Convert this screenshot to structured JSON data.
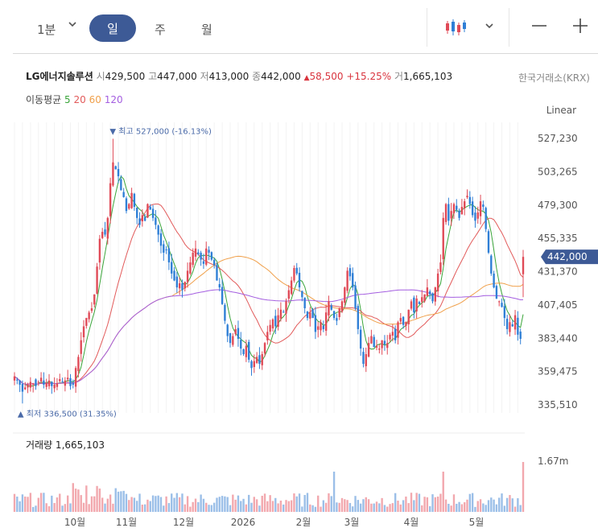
{
  "toolbar": {
    "interval_1min": "1분",
    "chevron": "⌄",
    "tab_day": "일",
    "tab_week": "주",
    "tab_month": "월",
    "chart_type_icon": "candlestick-icon",
    "zoom_out": "—",
    "zoom_in": "+"
  },
  "info": {
    "name": "LG에너지솔루션",
    "open_label": "시",
    "open": "429,500",
    "high_label": "고",
    "high": "447,000",
    "low_label": "저",
    "low": "413,000",
    "close_label": "종",
    "close": "442,000",
    "change_arrow": "▲",
    "change": "58,500",
    "change_pct": "+15.25%",
    "volume_label": "거",
    "volume": "1,665,103",
    "exchange": "한국거래소(KRX)"
  },
  "ma": {
    "label": "이동평균",
    "periods": [
      "5",
      "20",
      "60",
      "120"
    ],
    "colors": [
      "#3aa53a",
      "#e25a5a",
      "#f0a04b",
      "#a45ee0"
    ]
  },
  "scale_label": "Linear",
  "colors": {
    "up": "#e04a57",
    "down": "#2f7fd6",
    "accent": "#3d5a96",
    "vol_up": "#f2a8ae",
    "vol_down": "#9bbfe8"
  },
  "chart_data": {
    "type": "candlestick",
    "y_ticks": [
      "527,230",
      "503,265",
      "479,300",
      "455,335",
      "431,370",
      "407,405",
      "383,440",
      "359,475",
      "335,510"
    ],
    "y_tick_values": [
      527230,
      503265,
      479300,
      455335,
      431370,
      407405,
      383440,
      359475,
      335510
    ],
    "ylim": [
      325000,
      535000
    ],
    "x_labels": [
      "10월",
      "11월",
      "12월",
      "2026",
      "2월",
      "3월",
      "4월",
      "5월"
    ],
    "last_price_label": "442,000",
    "max_label": "▼ 최고 527,000 (-16.13%)",
    "min_label": "▲ 최저 336,500 (31.35%)",
    "volume_title": "거래량",
    "volume_value": "1,665,103",
    "volume_tick": "1.67m",
    "closes": [
      356000,
      353000,
      350000,
      345000,
      348000,
      350000,
      352000,
      351000,
      349000,
      352000,
      355000,
      350000,
      351000,
      353000,
      349000,
      350000,
      351000,
      354000,
      352000,
      353000,
      355000,
      349000,
      350000,
      362000,
      370000,
      382000,
      392000,
      398000,
      402000,
      405000,
      415000,
      435000,
      455000,
      460000,
      458000,
      470000,
      495000,
      510000,
      505000,
      500000,
      490000,
      485000,
      475000,
      480000,
      488000,
      478000,
      470000,
      465000,
      472000,
      468000,
      480000,
      476000,
      470000,
      465000,
      458000,
      450000,
      445000,
      447000,
      438000,
      430000,
      425000,
      420000,
      423000,
      418000,
      424000,
      432000,
      438000,
      445000,
      448000,
      444000,
      440000,
      437000,
      448000,
      445000,
      440000,
      436000,
      425000,
      420000,
      408000,
      396000,
      385000,
      380000,
      385000,
      390000,
      383000,
      376000,
      372000,
      378000,
      368000,
      362000,
      367000,
      370000,
      365000,
      372000,
      380000,
      388000,
      393000,
      397000,
      392000,
      400000,
      404000,
      402000,
      410000,
      418000,
      425000,
      434000,
      430000,
      420000,
      413000,
      405000,
      398000,
      402000,
      398000,
      388000,
      392000,
      395000,
      390000,
      402000,
      410000,
      404000,
      398000,
      396000,
      405000,
      410000,
      420000,
      432000,
      428000,
      420000,
      405000,
      390000,
      376000,
      365000,
      372000,
      380000,
      385000,
      377000,
      378000,
      376000,
      382000,
      379000,
      380000,
      386000,
      388000,
      382000,
      395000,
      398000,
      393000,
      395000,
      404000,
      410000,
      402000,
      412000,
      408000,
      413000,
      415000,
      420000,
      415000,
      410000,
      420000,
      430000,
      438000,
      470000,
      480000,
      468000,
      475000,
      480000,
      476000,
      470000,
      478000,
      482000,
      486000,
      480000,
      472000,
      468000,
      474000,
      482000,
      478000,
      462000,
      445000,
      430000,
      420000,
      412000,
      410000,
      406000,
      398000,
      390000,
      395000,
      392000,
      400000,
      386000,
      383000,
      442000
    ],
    "ma_periods": [
      5,
      20,
      60,
      120
    ]
  }
}
